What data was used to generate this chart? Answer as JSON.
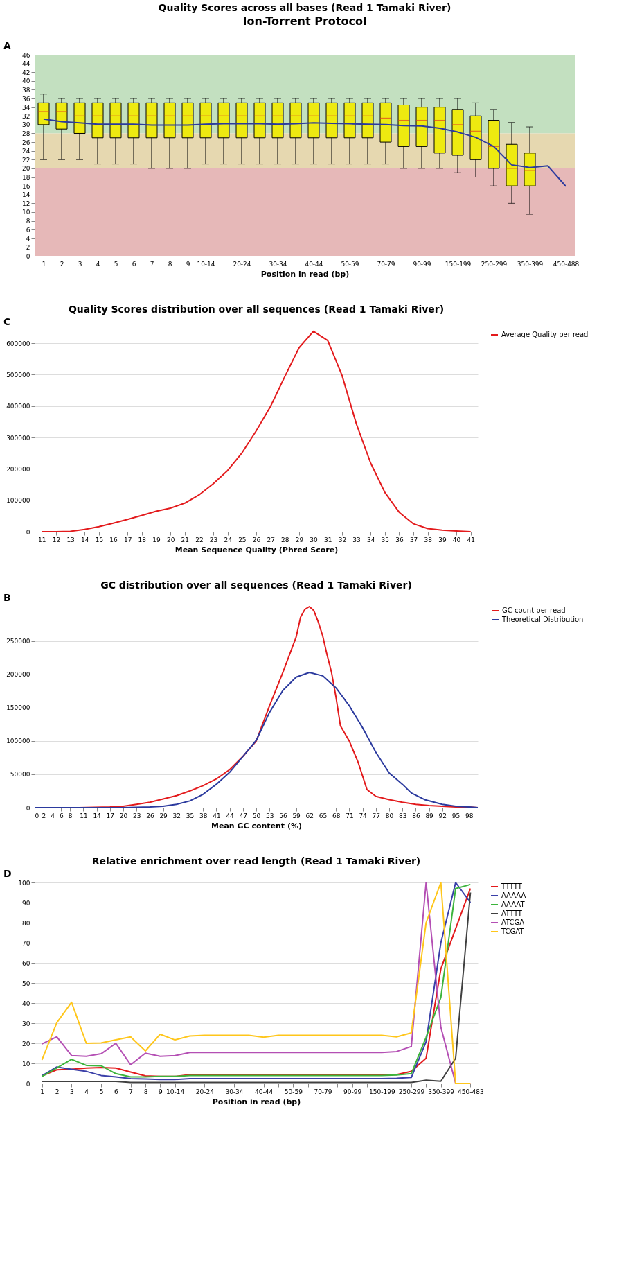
{
  "chart_data": [
    {
      "type": "box",
      "title": "Quality Scores across all bases (Read 1 Tamaki River)",
      "xlabel": "Position in read (bp)",
      "annotations": [
        "A",
        "Ion-Torrent Protocol"
      ],
      "categories": [
        "1",
        "2",
        "3",
        "4",
        "5",
        "6",
        "7",
        "8",
        "9",
        "10-14",
        null,
        "20-24",
        null,
        "30-34",
        null,
        "40-44",
        null,
        "50-59",
        null,
        "70-79",
        null,
        "90-99",
        null,
        "150-199",
        null,
        "250-299",
        null,
        "350-399",
        null,
        "450-488"
      ],
      "ylim": [
        0,
        46
      ],
      "yticks": [
        0,
        2,
        4,
        6,
        8,
        10,
        12,
        14,
        16,
        18,
        20,
        22,
        24,
        26,
        28,
        30,
        32,
        34,
        36,
        38,
        40,
        42,
        44,
        46
      ],
      "grid": false,
      "legend": false,
      "bands": [
        {
          "axis": "y",
          "from": 28,
          "to": 46,
          "color": "#c3e0c0"
        },
        {
          "axis": "y",
          "from": 20,
          "to": 28,
          "color": "#e6d8b0"
        },
        {
          "axis": "y",
          "from": 0,
          "to": 20,
          "color": "#e6b8b8"
        }
      ],
      "series": [
        {
          "type": "box",
          "color": "#eeea10",
          "boxes": [
            {
              "low": 22,
              "q1": 30,
              "median": 33,
              "q3": 35,
              "high": 37
            },
            {
              "low": 22,
              "q1": 29,
              "median": 33,
              "q3": 35,
              "high": 36
            },
            {
              "low": 22,
              "q1": 28,
              "median": 32,
              "q3": 35,
              "high": 36
            },
            {
              "low": 21,
              "q1": 27,
              "median": 32,
              "q3": 35,
              "high": 36
            },
            {
              "low": 21,
              "q1": 27,
              "median": 32,
              "q3": 35,
              "high": 36
            },
            {
              "low": 21,
              "q1": 27,
              "median": 32,
              "q3": 35,
              "high": 36
            },
            {
              "low": 20,
              "q1": 27,
              "median": 32,
              "q3": 35,
              "high": 36
            },
            {
              "low": 20,
              "q1": 27,
              "median": 32,
              "q3": 35,
              "high": 36
            },
            {
              "low": 20,
              "q1": 27,
              "median": 32,
              "q3": 35,
              "high": 36
            },
            {
              "low": 21,
              "q1": 27,
              "median": 32,
              "q3": 35,
              "high": 36
            },
            {
              "low": 21,
              "q1": 27,
              "median": 32,
              "q3": 35,
              "high": 36
            },
            {
              "low": 21,
              "q1": 27,
              "median": 32,
              "q3": 35,
              "high": 36
            },
            {
              "low": 21,
              "q1": 27,
              "median": 32,
              "q3": 35,
              "high": 36
            },
            {
              "low": 21,
              "q1": 27,
              "median": 32,
              "q3": 35,
              "high": 36
            },
            {
              "low": 21,
              "q1": 27,
              "median": 32,
              "q3": 35,
              "high": 36
            },
            {
              "low": 21,
              "q1": 27,
              "median": 32,
              "q3": 35,
              "high": 36
            },
            {
              "low": 21,
              "q1": 27,
              "median": 32,
              "q3": 35,
              "high": 36
            },
            {
              "low": 21,
              "q1": 27,
              "median": 32,
              "q3": 35,
              "high": 36
            },
            {
              "low": 21,
              "q1": 27,
              "median": 32,
              "q3": 35,
              "high": 36
            },
            {
              "low": 21,
              "q1": 26,
              "median": 31.5,
              "q3": 35,
              "high": 36
            },
            {
              "low": 20,
              "q1": 25,
              "median": 31,
              "q3": 34.5,
              "high": 36
            },
            {
              "low": 20,
              "q1": 25,
              "median": 31,
              "q3": 34,
              "high": 36
            },
            {
              "low": 20,
              "q1": 23.5,
              "median": 31,
              "q3": 34,
              "high": 36
            },
            {
              "low": 19,
              "q1": 23,
              "median": 30,
              "q3": 33.5,
              "high": 36
            },
            {
              "low": 18,
              "q1": 22,
              "median": 28.5,
              "q3": 32,
              "high": 35
            },
            {
              "low": 16,
              "q1": 20,
              "median": 25,
              "q3": 31,
              "high": 33.5
            },
            {
              "low": 12,
              "q1": 16,
              "median": 20,
              "q3": 25.5,
              "high": 30.5
            },
            {
              "low": 9.5,
              "q1": 16,
              "median": 19.5,
              "q3": 23.5,
              "high": 29.5
            },
            null,
            null
          ]
        },
        {
          "type": "line",
          "color": "#2b3a9e",
          "values": [
            31.3,
            30.7,
            30.4,
            30.1,
            30.1,
            30.1,
            29.9,
            29.9,
            29.9,
            30.1,
            30.2,
            30.2,
            30.2,
            30.1,
            30.2,
            30.4,
            30.3,
            30.2,
            30.1,
            30.0,
            29.8,
            29.7,
            29.2,
            28.3,
            27.1,
            25.0,
            20.8,
            20.2,
            20.6,
            15.9
          ]
        }
      ]
    },
    {
      "type": "line",
      "title": "Quality Scores distribution over all sequences (Read 1 Tamaki River)",
      "xlabel": "Mean Sequence Quality (Phred Score)",
      "annotations": [
        "C"
      ],
      "x": [
        11,
        12,
        13,
        14,
        15,
        16,
        17,
        18,
        19,
        20,
        21,
        22,
        23,
        24,
        25,
        26,
        27,
        28,
        29,
        30,
        31,
        32,
        33,
        34,
        35,
        36,
        37,
        38,
        39,
        40,
        41
      ],
      "xlim": [
        10.5,
        41.5
      ],
      "xticks": [
        11,
        12,
        13,
        14,
        15,
        16,
        17,
        18,
        19,
        20,
        21,
        22,
        23,
        24,
        25,
        26,
        27,
        28,
        29,
        30,
        31,
        32,
        33,
        34,
        35,
        36,
        37,
        38,
        39,
        40,
        41
      ],
      "ylim": [
        0,
        640000
      ],
      "yticks": [
        0,
        100000,
        200000,
        300000,
        400000,
        500000,
        600000
      ],
      "grid": "y",
      "legend": "top right",
      "series": [
        {
          "name": "Average Quality per read",
          "color": "#e31a1c",
          "values": [
            0,
            0,
            1000,
            7000,
            16000,
            27000,
            39000,
            52000,
            65000,
            75000,
            91000,
            117000,
            153000,
            195000,
            251000,
            321000,
            399000,
            494000,
            586000,
            638000,
            609000,
            498000,
            344000,
            219000,
            125000,
            62000,
            25000,
            10000,
            5000,
            2000,
            0
          ]
        }
      ]
    },
    {
      "type": "line",
      "title": "GC distribution over all sequences (Read 1 Tamaki River)",
      "xlabel": "Mean GC content (%)",
      "annotations": [
        "B"
      ],
      "xlim": [
        0,
        100
      ],
      "xticks": [
        0,
        2,
        4,
        6,
        8,
        11,
        14,
        17,
        20,
        23,
        26,
        29,
        32,
        35,
        38,
        41,
        44,
        47,
        50,
        53,
        56,
        59,
        62,
        65,
        68,
        71,
        74,
        77,
        80,
        83,
        86,
        89,
        92,
        95,
        98
      ],
      "ylim": [
        0,
        302000
      ],
      "yticks": [
        0,
        50000,
        100000,
        150000,
        200000,
        250000
      ],
      "grid": "y",
      "legend": "top right",
      "series": [
        {
          "name": "GC count per read",
          "color": "#e31a1c",
          "x": [
            0,
            10,
            17,
            20,
            23,
            26,
            29,
            32,
            35,
            38,
            41,
            44,
            47,
            50,
            53,
            56,
            59,
            60,
            61,
            62,
            63,
            64,
            65,
            66,
            67,
            68,
            69,
            71,
            73,
            75,
            77,
            80,
            83,
            86,
            89,
            92,
            95,
            98,
            100
          ],
          "values": [
            0,
            0,
            1000,
            2000,
            5000,
            8000,
            13000,
            18000,
            25000,
            33000,
            43000,
            57000,
            77000,
            100000,
            153000,
            203000,
            256000,
            286000,
            298000,
            302000,
            296000,
            279000,
            258000,
            229000,
            203000,
            166000,
            123000,
            100000,
            68000,
            27000,
            17000,
            12000,
            8000,
            5000,
            3000,
            2000,
            1000,
            1000,
            0
          ]
        },
        {
          "name": "Theoretical Distribution",
          "color": "#2b3a9e",
          "x": [
            0,
            20,
            26,
            29,
            32,
            35,
            38,
            41,
            44,
            47,
            50,
            53,
            56,
            59,
            62,
            65,
            68,
            71,
            74,
            77,
            80,
            83,
            85,
            88,
            92,
            95,
            98,
            100
          ],
          "values": [
            0,
            0,
            1000,
            2000,
            5000,
            10000,
            20000,
            35000,
            53000,
            77000,
            101000,
            143000,
            176000,
            196000,
            203000,
            198000,
            180000,
            153000,
            120000,
            83000,
            52000,
            35000,
            22000,
            12000,
            5000,
            2000,
            1000,
            0
          ]
        }
      ]
    },
    {
      "type": "line",
      "title": "Relative enrichment over read length (Read 1 Tamaki River)",
      "xlabel": "Position in read (bp)",
      "annotations": [
        "D"
      ],
      "categories": [
        "1",
        "2",
        "3",
        "4",
        "5",
        "6",
        "7",
        "8",
        "9",
        "10-14",
        null,
        "20-24",
        null,
        "30-34",
        null,
        "40-44",
        null,
        "50-59",
        null,
        "70-79",
        null,
        "90-99",
        null,
        "150-199",
        null,
        "250-299",
        null,
        "350-399",
        null,
        "450-483"
      ],
      "ylim": [
        0,
        100
      ],
      "yticks": [
        0,
        10,
        20,
        30,
        40,
        50,
        60,
        70,
        80,
        90,
        100
      ],
      "grid": "y",
      "legend": "top right",
      "series": [
        {
          "name": "TTTTT",
          "color": "#e31a1c",
          "values": [
            3.8,
            6.8,
            7.1,
            7.7,
            7.9,
            7.7,
            5.7,
            3.8,
            3.5,
            3.5,
            4.4,
            4.4,
            4.4,
            4.4,
            4.4,
            4.4,
            4.4,
            4.4,
            4.4,
            4.4,
            4.4,
            4.4,
            4.4,
            4.4,
            4.4,
            6,
            12.6,
            57,
            77,
            97
          ]
        },
        {
          "name": "AAAAA",
          "color": "#3a3fa8",
          "values": [
            3.8,
            8.2,
            7.1,
            6,
            4,
            3.3,
            2.4,
            2.2,
            2,
            2,
            2.4,
            2.4,
            2.4,
            2.4,
            2.4,
            2.4,
            2.4,
            2.4,
            2.4,
            2.4,
            2.4,
            2.4,
            2.4,
            2.4,
            2.6,
            3,
            20.8,
            70,
            100,
            90
          ]
        },
        {
          "name": "AAAAT",
          "color": "#3cb43c",
          "values": [
            3.5,
            7.7,
            12,
            9,
            8.8,
            4.9,
            3.3,
            3.3,
            3.5,
            3.5,
            4,
            4,
            4,
            4,
            4,
            4,
            4,
            4,
            4,
            4,
            4,
            4,
            4,
            4,
            4.2,
            4.9,
            23,
            42.8,
            97,
            99
          ]
        },
        {
          "name": "ATTTT",
          "color": "#404040",
          "values": [
            1,
            1,
            1,
            1,
            1,
            1,
            0.5,
            0.5,
            0.5,
            0.5,
            0.5,
            0.5,
            0.5,
            0.5,
            0.5,
            0.5,
            0.5,
            0.5,
            0.5,
            0.5,
            0.5,
            0.5,
            0.5,
            0.5,
            0.5,
            0.5,
            1.6,
            1.1,
            12.6,
            95
          ]
        },
        {
          "name": "ATCGA",
          "color": "#b44fb4",
          "values": [
            19.7,
            23.2,
            13.9,
            13.5,
            14.8,
            20,
            9.3,
            15.1,
            13.5,
            13.9,
            15.4,
            15.4,
            15.4,
            15.4,
            15.4,
            15.4,
            15.4,
            15.4,
            15.4,
            15.4,
            15.4,
            15.4,
            15.4,
            15.4,
            15.9,
            18.4,
            100,
            28,
            0,
            0
          ]
        },
        {
          "name": "TCGAT",
          "color": "#ffc61a",
          "values": [
            11.8,
            30.2,
            40.4,
            20,
            20.2,
            21.7,
            23.2,
            16.2,
            24.5,
            21.7,
            23.6,
            24,
            24,
            24,
            24,
            23,
            24,
            24,
            24,
            24,
            24,
            24,
            24,
            24,
            23.2,
            25.2,
            80,
            100,
            0,
            0
          ]
        }
      ]
    }
  ]
}
